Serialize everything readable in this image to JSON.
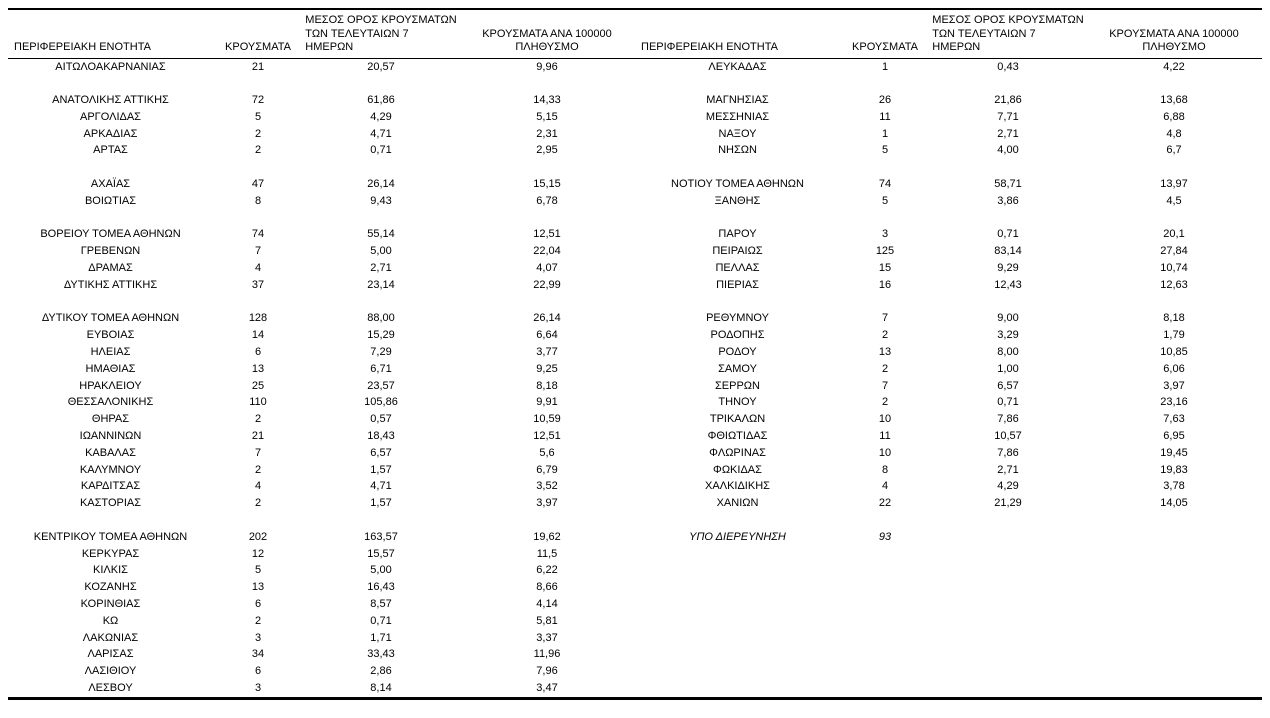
{
  "headers": {
    "region": "ΠΕΡΙΦΕΡΕΙΑΚΗ ΕΝΟΤΗΤΑ",
    "cases": "ΚΡΟΥΣΜΑΤΑ",
    "avg7_lines": [
      "ΜΕΣΟΣ ΟΡΟΣ ΚΡΟΥΣΜΑΤΩΝ",
      "ΤΩΝ ΤΕΛΕΥΤΑΙΩΝ 7",
      "ΗΜΕΡΩΝ"
    ],
    "per100k_lines": [
      "ΚΡΟΥΣΜΑΤΑ ΑΝΑ 100000",
      "ΠΛΗΘΥΣΜΟ"
    ]
  },
  "rows": [
    {
      "left": {
        "region": "ΑΙΤΩΛΟΑΚΑΡΝΑΝΙΑΣ",
        "cases": "21",
        "avg7": "20,57",
        "per100k": "9,96"
      },
      "right": {
        "region": "ΛΕΥΚΑΔΑΣ",
        "cases": "1",
        "avg7": "0,43",
        "per100k": "4,22"
      }
    },
    {
      "left": null,
      "right": null
    },
    {
      "left": {
        "region": "ΑΝΑΤΟΛΙΚΗΣ ΑΤΤΙΚΗΣ",
        "cases": "72",
        "avg7": "61,86",
        "per100k": "14,33"
      },
      "right": {
        "region": "ΜΑΓΝΗΣΙΑΣ",
        "cases": "26",
        "avg7": "21,86",
        "per100k": "13,68"
      }
    },
    {
      "left": {
        "region": "ΑΡΓΟΛΙΔΑΣ",
        "cases": "5",
        "avg7": "4,29",
        "per100k": "5,15"
      },
      "right": {
        "region": "ΜΕΣΣΗΝΙΑΣ",
        "cases": "11",
        "avg7": "7,71",
        "per100k": "6,88"
      }
    },
    {
      "left": {
        "region": "ΑΡΚΑΔΙΑΣ",
        "cases": "2",
        "avg7": "4,71",
        "per100k": "2,31"
      },
      "right": {
        "region": "ΝΑΞΟΥ",
        "cases": "1",
        "avg7": "2,71",
        "per100k": "4,8"
      }
    },
    {
      "left": {
        "region": "ΑΡΤΑΣ",
        "cases": "2",
        "avg7": "0,71",
        "per100k": "2,95"
      },
      "right": {
        "region": "ΝΗΣΩΝ",
        "cases": "5",
        "avg7": "4,00",
        "per100k": "6,7"
      }
    },
    {
      "left": null,
      "right": null
    },
    {
      "left": {
        "region": "ΑΧΑΪΑΣ",
        "cases": "47",
        "avg7": "26,14",
        "per100k": "15,15"
      },
      "right": {
        "region": "ΝΟΤΙΟΥ ΤΟΜΕΑ ΑΘΗΝΩΝ",
        "cases": "74",
        "avg7": "58,71",
        "per100k": "13,97"
      }
    },
    {
      "left": {
        "region": "ΒΟΙΩΤΙΑΣ",
        "cases": "8",
        "avg7": "9,43",
        "per100k": "6,78"
      },
      "right": {
        "region": "ΞΑΝΘΗΣ",
        "cases": "5",
        "avg7": "3,86",
        "per100k": "4,5"
      }
    },
    {
      "left": null,
      "right": null
    },
    {
      "left": {
        "region": "ΒΟΡΕΙΟΥ ΤΟΜΕΑ ΑΘΗΝΩΝ",
        "cases": "74",
        "avg7": "55,14",
        "per100k": "12,51"
      },
      "right": {
        "region": "ΠΑΡΟΥ",
        "cases": "3",
        "avg7": "0,71",
        "per100k": "20,1"
      }
    },
    {
      "left": {
        "region": "ΓΡΕΒΕΝΩΝ",
        "cases": "7",
        "avg7": "5,00",
        "per100k": "22,04"
      },
      "right": {
        "region": "ΠΕΙΡΑΙΩΣ",
        "cases": "125",
        "avg7": "83,14",
        "per100k": "27,84"
      }
    },
    {
      "left": {
        "region": "ΔΡΑΜΑΣ",
        "cases": "4",
        "avg7": "2,71",
        "per100k": "4,07"
      },
      "right": {
        "region": "ΠΕΛΛΑΣ",
        "cases": "15",
        "avg7": "9,29",
        "per100k": "10,74"
      }
    },
    {
      "left": {
        "region": "ΔΥΤΙΚΗΣ ΑΤΤΙΚΗΣ",
        "cases": "37",
        "avg7": "23,14",
        "per100k": "22,99"
      },
      "right": {
        "region": "ΠΙΕΡΙΑΣ",
        "cases": "16",
        "avg7": "12,43",
        "per100k": "12,63"
      }
    },
    {
      "left": null,
      "right": null
    },
    {
      "left": {
        "region": "ΔΥΤΙΚΟΥ ΤΟΜΕΑ ΑΘΗΝΩΝ",
        "cases": "128",
        "avg7": "88,00",
        "per100k": "26,14"
      },
      "right": {
        "region": "ΡΕΘΥΜΝΟΥ",
        "cases": "7",
        "avg7": "9,00",
        "per100k": "8,18"
      }
    },
    {
      "left": {
        "region": "ΕΥΒΟΙΑΣ",
        "cases": "14",
        "avg7": "15,29",
        "per100k": "6,64"
      },
      "right": {
        "region": "ΡΟΔΟΠΗΣ",
        "cases": "2",
        "avg7": "3,29",
        "per100k": "1,79"
      }
    },
    {
      "left": {
        "region": "ΗΛΕΙΑΣ",
        "cases": "6",
        "avg7": "7,29",
        "per100k": "3,77"
      },
      "right": {
        "region": "ΡΟΔΟΥ",
        "cases": "13",
        "avg7": "8,00",
        "per100k": "10,85"
      }
    },
    {
      "left": {
        "region": "ΗΜΑΘΙΑΣ",
        "cases": "13",
        "avg7": "6,71",
        "per100k": "9,25"
      },
      "right": {
        "region": "ΣΑΜΟΥ",
        "cases": "2",
        "avg7": "1,00",
        "per100k": "6,06"
      }
    },
    {
      "left": {
        "region": "ΗΡΑΚΛΕΙΟΥ",
        "cases": "25",
        "avg7": "23,57",
        "per100k": "8,18"
      },
      "right": {
        "region": "ΣΕΡΡΩΝ",
        "cases": "7",
        "avg7": "6,57",
        "per100k": "3,97"
      }
    },
    {
      "left": {
        "region": "ΘΕΣΣΑΛΟΝΙΚΗΣ",
        "cases": "110",
        "avg7": "105,86",
        "per100k": "9,91"
      },
      "right": {
        "region": "ΤΗΝΟΥ",
        "cases": "2",
        "avg7": "0,71",
        "per100k": "23,16"
      }
    },
    {
      "left": {
        "region": "ΘΗΡΑΣ",
        "cases": "2",
        "avg7": "0,57",
        "per100k": "10,59"
      },
      "right": {
        "region": "ΤΡΙΚΑΛΩΝ",
        "cases": "10",
        "avg7": "7,86",
        "per100k": "7,63"
      }
    },
    {
      "left": {
        "region": "ΙΩΑΝΝΙΝΩΝ",
        "cases": "21",
        "avg7": "18,43",
        "per100k": "12,51"
      },
      "right": {
        "region": "ΦΘΙΩΤΙΔΑΣ",
        "cases": "11",
        "avg7": "10,57",
        "per100k": "6,95"
      }
    },
    {
      "left": {
        "region": "ΚΑΒΑΛΑΣ",
        "cases": "7",
        "avg7": "6,57",
        "per100k": "5,6"
      },
      "right": {
        "region": "ΦΛΩΡΙΝΑΣ",
        "cases": "10",
        "avg7": "7,86",
        "per100k": "19,45"
      }
    },
    {
      "left": {
        "region": "ΚΑΛΥΜΝΟΥ",
        "cases": "2",
        "avg7": "1,57",
        "per100k": "6,79"
      },
      "right": {
        "region": "ΦΩΚΙΔΑΣ",
        "cases": "8",
        "avg7": "2,71",
        "per100k": "19,83"
      }
    },
    {
      "left": {
        "region": "ΚΑΡΔΙΤΣΑΣ",
        "cases": "4",
        "avg7": "4,71",
        "per100k": "3,52"
      },
      "right": {
        "region": "ΧΑΛΚΙΔΙΚΗΣ",
        "cases": "4",
        "avg7": "4,29",
        "per100k": "3,78"
      }
    },
    {
      "left": {
        "region": "ΚΑΣΤΟΡΙΑΣ",
        "cases": "2",
        "avg7": "1,57",
        "per100k": "3,97"
      },
      "right": {
        "region": "ΧΑΝΙΩΝ",
        "cases": "22",
        "avg7": "21,29",
        "per100k": "14,05"
      }
    },
    {
      "left": null,
      "right": null
    },
    {
      "left": {
        "region": "ΚΕΝΤΡΙΚΟΥ ΤΟΜΕΑ ΑΘΗΝΩΝ",
        "cases": "202",
        "avg7": "163,57",
        "per100k": "19,62"
      },
      "right": {
        "region": "ΥΠΟ ΔΙΕΡΕΥΝΗΣΗ",
        "cases": "93",
        "italic": true
      }
    },
    {
      "left": {
        "region": "ΚΕΡΚΥΡΑΣ",
        "cases": "12",
        "avg7": "15,57",
        "per100k": "11,5"
      },
      "right": null
    },
    {
      "left": {
        "region": "ΚΙΛΚΙΣ",
        "cases": "5",
        "avg7": "5,00",
        "per100k": "6,22"
      },
      "right": null
    },
    {
      "left": {
        "region": "ΚΟΖΑΝΗΣ",
        "cases": "13",
        "avg7": "16,43",
        "per100k": "8,66"
      },
      "right": null
    },
    {
      "left": {
        "region": "ΚΟΡΙΝΘΙΑΣ",
        "cases": "6",
        "avg7": "8,57",
        "per100k": "4,14"
      },
      "right": null
    },
    {
      "left": {
        "region": "ΚΩ",
        "cases": "2",
        "avg7": "0,71",
        "per100k": "5,81"
      },
      "right": null
    },
    {
      "left": {
        "region": "ΛΑΚΩΝΙΑΣ",
        "cases": "3",
        "avg7": "1,71",
        "per100k": "3,37"
      },
      "right": null
    },
    {
      "left": {
        "region": "ΛΑΡΙΣΑΣ",
        "cases": "34",
        "avg7": "33,43",
        "per100k": "11,96"
      },
      "right": null
    },
    {
      "left": {
        "region": "ΛΑΣΙΘΙΟΥ",
        "cases": "6",
        "avg7": "2,86",
        "per100k": "7,96"
      },
      "right": null
    },
    {
      "left": {
        "region": "ΛΕΣΒΟΥ",
        "cases": "3",
        "avg7": "8,14",
        "per100k": "3,47"
      },
      "right": null
    }
  ]
}
